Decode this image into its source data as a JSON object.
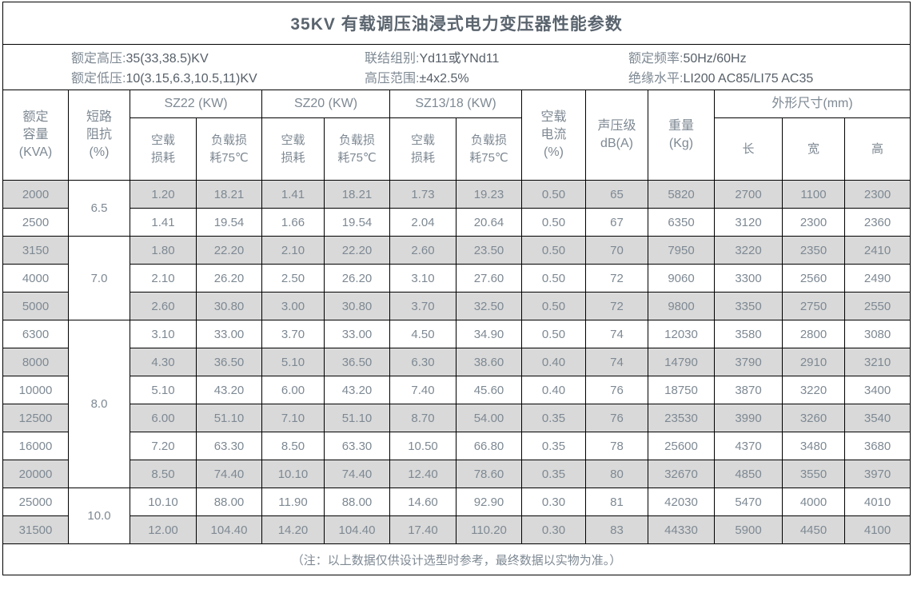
{
  "title": "35KV 有载调压油浸式电力变压器性能参数",
  "info": {
    "items": [
      {
        "label": "额定高压:",
        "value": "35(33,38.5)KV"
      },
      {
        "label": "额定低压:",
        "value": "10(3.15,6.3,10.5,11)KV"
      },
      {
        "label": "联结组别:",
        "value": "Yd11或YNd11"
      },
      {
        "label": "高压范围:",
        "value": "±4x2.5%"
      },
      {
        "label": "额定频率:",
        "value": "50Hz/60Hz"
      },
      {
        "label": "绝缘水平:",
        "value": "LI200 AC85/LI75 AC35"
      }
    ]
  },
  "header": {
    "capacity": "额定\n容量\n(KVA)",
    "impedance": "短路\n阻抗\n(%)",
    "groups": [
      {
        "label": "SZ22 (KW)",
        "sub": [
          "空载\n损耗",
          "负载损\n耗75℃"
        ]
      },
      {
        "label": "SZ20 (KW)",
        "sub": [
          "空载\n损耗",
          "负载损\n耗75℃"
        ]
      },
      {
        "label": "SZ13/18 (KW)",
        "sub": [
          "空载\n损耗",
          "负载损\n耗75℃"
        ]
      }
    ],
    "no_load_current": "空载\n电流\n(%)",
    "sound_level": "声压级\ndB(A)",
    "weight": "重量\n(Kg)",
    "dimensions": {
      "label": "外形尺寸(mm)",
      "sub": [
        "长",
        "宽",
        "高"
      ]
    }
  },
  "rows": [
    {
      "capacity": "2000",
      "shaded": true,
      "impedance": {
        "label": "6.5",
        "rowspan": 2
      },
      "values": [
        "1.20",
        "18.21",
        "1.41",
        "18.21",
        "1.73",
        "19.23",
        "0.50",
        "65",
        "5820",
        "2700",
        "1100",
        "2300"
      ]
    },
    {
      "capacity": "2500",
      "shaded": false,
      "values": [
        "1.41",
        "19.54",
        "1.66",
        "19.54",
        "2.04",
        "20.64",
        "0.50",
        "67",
        "6350",
        "3120",
        "2300",
        "2360"
      ]
    },
    {
      "capacity": "3150",
      "shaded": true,
      "impedance": {
        "label": "7.0",
        "rowspan": 3
      },
      "values": [
        "1.80",
        "22.20",
        "2.10",
        "22.20",
        "2.60",
        "23.50",
        "0.50",
        "70",
        "7950",
        "3220",
        "2350",
        "2410"
      ]
    },
    {
      "capacity": "4000",
      "shaded": false,
      "values": [
        "2.10",
        "26.20",
        "2.50",
        "26.20",
        "3.10",
        "27.60",
        "0.50",
        "72",
        "9060",
        "3300",
        "2560",
        "2490"
      ]
    },
    {
      "capacity": "5000",
      "shaded": true,
      "values": [
        "2.60",
        "30.80",
        "3.00",
        "30.80",
        "3.70",
        "32.50",
        "0.50",
        "72",
        "9800",
        "3350",
        "2750",
        "2550"
      ]
    },
    {
      "capacity": "6300",
      "shaded": false,
      "impedance": {
        "label": "8.0",
        "rowspan": 6
      },
      "values": [
        "3.10",
        "33.00",
        "3.70",
        "33.00",
        "4.50",
        "34.90",
        "0.50",
        "74",
        "12030",
        "3580",
        "2800",
        "3080"
      ]
    },
    {
      "capacity": "8000",
      "shaded": true,
      "values": [
        "4.30",
        "36.50",
        "5.10",
        "36.50",
        "6.30",
        "38.60",
        "0.40",
        "74",
        "14790",
        "3790",
        "2910",
        "3210"
      ]
    },
    {
      "capacity": "10000",
      "shaded": false,
      "values": [
        "5.10",
        "43.20",
        "6.00",
        "43.20",
        "7.40",
        "45.60",
        "0.40",
        "76",
        "18750",
        "3870",
        "3220",
        "3400"
      ]
    },
    {
      "capacity": "12500",
      "shaded": true,
      "values": [
        "6.00",
        "51.10",
        "7.10",
        "51.10",
        "8.70",
        "54.00",
        "0.35",
        "76",
        "23530",
        "3990",
        "3260",
        "3540"
      ]
    },
    {
      "capacity": "16000",
      "shaded": false,
      "values": [
        "7.20",
        "63.30",
        "8.50",
        "63.30",
        "10.50",
        "66.80",
        "0.35",
        "78",
        "25600",
        "4370",
        "3480",
        "3680"
      ]
    },
    {
      "capacity": "20000",
      "shaded": true,
      "values": [
        "8.50",
        "74.40",
        "10.10",
        "74.40",
        "12.40",
        "78.60",
        "0.35",
        "80",
        "32670",
        "4850",
        "3550",
        "3970"
      ]
    },
    {
      "capacity": "25000",
      "shaded": false,
      "impedance": {
        "label": "10.0",
        "rowspan": 2
      },
      "values": [
        "10.10",
        "88.00",
        "11.90",
        "88.00",
        "14.60",
        "92.90",
        "0.30",
        "81",
        "42030",
        "5470",
        "4000",
        "4010"
      ]
    },
    {
      "capacity": "31500",
      "shaded": true,
      "values": [
        "12.00",
        "104.40",
        "14.20",
        "104.40",
        "17.40",
        "110.20",
        "0.30",
        "83",
        "44330",
        "5900",
        "4450",
        "4100"
      ]
    }
  ],
  "note": "（注：以上数据仅供设计选型时参考，最终数据以实物为准。）",
  "colors": {
    "border": "#000000",
    "shaded_row": "#d9d9d9",
    "text": "#7e8993",
    "dark_text": "#565f68"
  }
}
